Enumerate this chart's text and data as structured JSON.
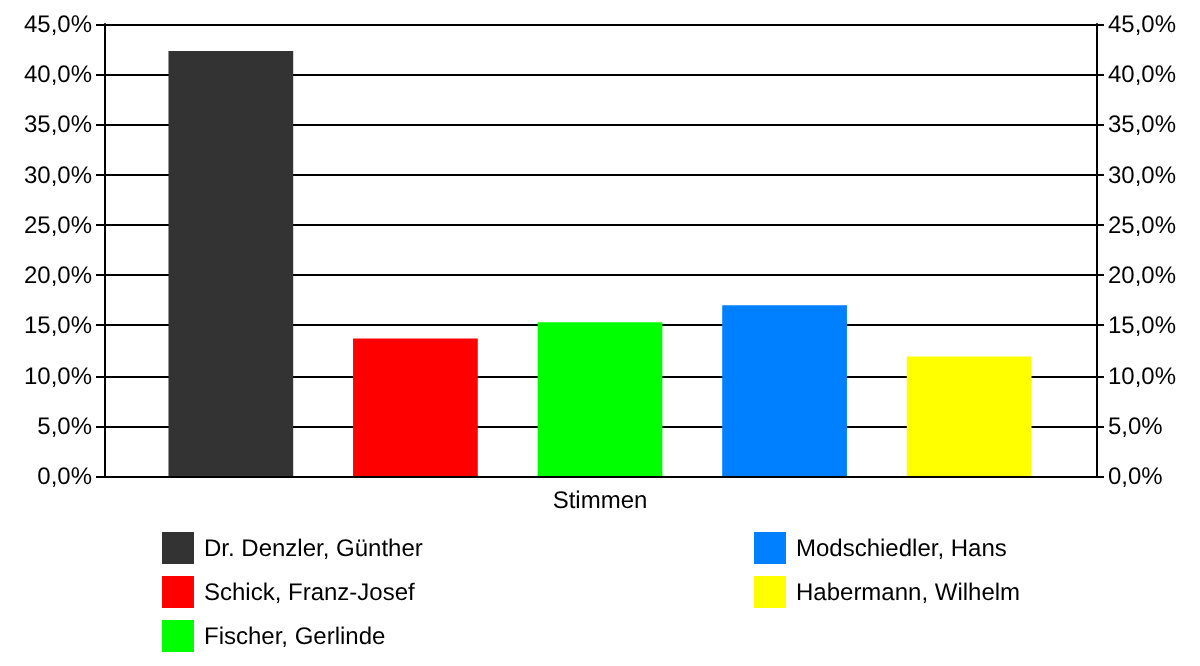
{
  "chart_data": {
    "type": "bar",
    "categories": [
      "Stimmen"
    ],
    "series": [
      {
        "name": "Dr. Denzler, Günther",
        "color": "#333333",
        "values": [
          42.3
        ]
      },
      {
        "name": "Schick, Franz-Josef",
        "color": "#ff0000",
        "values": [
          13.7
        ]
      },
      {
        "name": "Fischer, Gerlinde",
        "color": "#00ff00",
        "values": [
          15.3
        ]
      },
      {
        "name": "Modschiedler, Hans",
        "color": "#0080ff",
        "values": [
          17.0
        ]
      },
      {
        "name": "Habermann, Wilhelm",
        "color": "#ffff00",
        "values": [
          11.9
        ]
      }
    ],
    "ylim": [
      0,
      45
    ],
    "yticks": [
      {
        "value": 0,
        "label": "0,0%"
      },
      {
        "value": 5,
        "label": "5,0%"
      },
      {
        "value": 10,
        "label": "10,0%"
      },
      {
        "value": 15,
        "label": "15,0%"
      },
      {
        "value": 20,
        "label": "20,0%"
      },
      {
        "value": 25,
        "label": "25,0%"
      },
      {
        "value": 30,
        "label": "30,0%"
      },
      {
        "value": 35,
        "label": "35,0%"
      },
      {
        "value": 40,
        "label": "40,0%"
      },
      {
        "value": 45,
        "label": "45,0%"
      }
    ],
    "grid": "y",
    "legend": "bottom"
  }
}
